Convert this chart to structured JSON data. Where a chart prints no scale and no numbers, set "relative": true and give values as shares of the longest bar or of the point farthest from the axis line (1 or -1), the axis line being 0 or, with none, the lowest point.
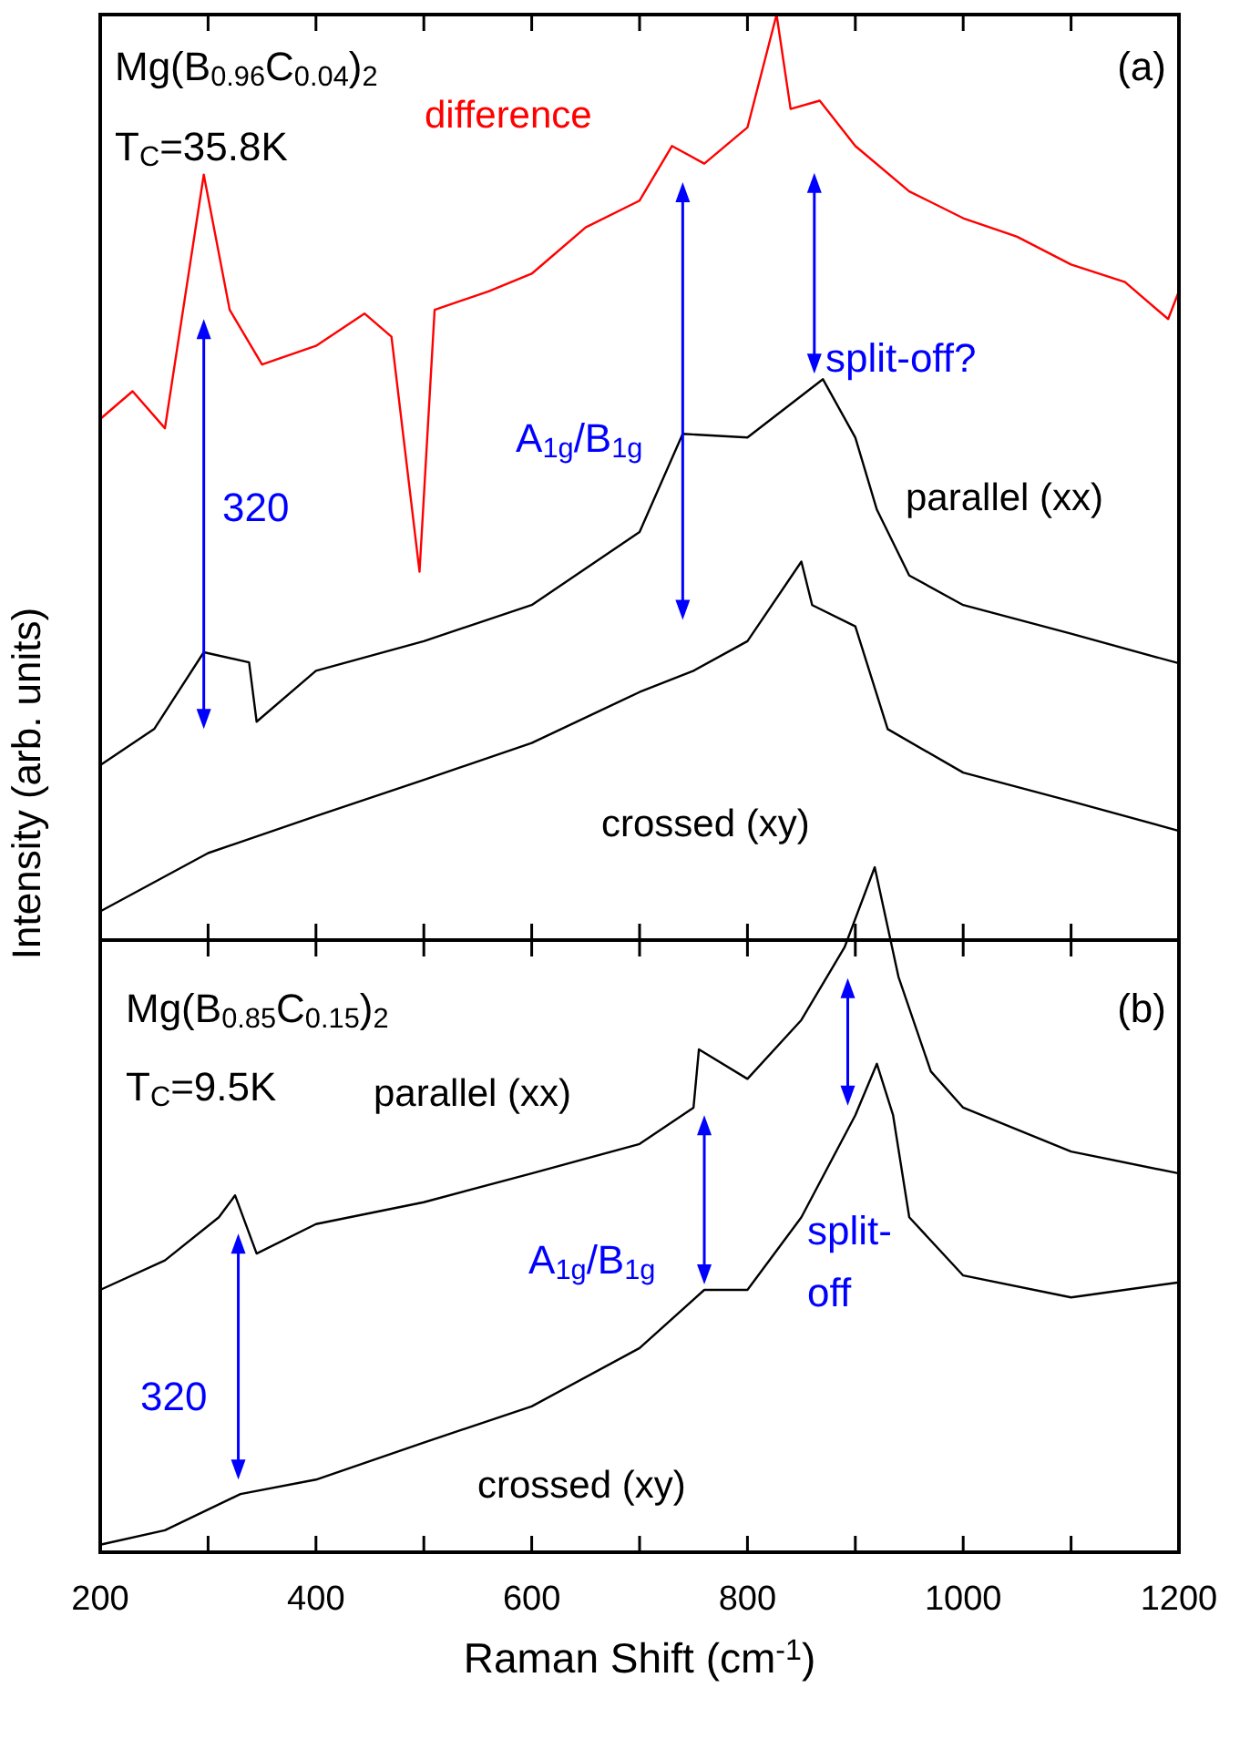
{
  "chart_data": [
    {
      "type": "line",
      "relative": true,
      "xlim": [
        200,
        1200
      ],
      "xticks": [
        200,
        {
          "value": 300,
          "label": null
        },
        400,
        {
          "value": 500,
          "label": null
        },
        600,
        {
          "value": 700,
          "label": null
        },
        800,
        {
          "value": 900,
          "label": null
        },
        1000,
        {
          "value": 1100,
          "label": null
        },
        1200
      ],
      "tick_labels": false,
      "legend": false,
      "grid": false,
      "ylabel": "Intensity (arb. units)",
      "annotations": [
        "Mg(B$_{0.96}$C$_{0.04}$)$_{2}$",
        "T$_{C}$=35.8K",
        "(a)",
        "320",
        "A$_{1g}$/B$_{1g}$",
        "split-off?"
      ],
      "series": [
        {
          "name": "difference",
          "color": "#ff0000",
          "x": [
            200,
            230,
            260,
            296,
            320,
            350,
            400,
            445,
            470,
            496,
            510,
            560,
            600,
            650,
            700,
            730,
            760,
            800,
            827,
            840,
            867,
            900,
            950,
            1000,
            1050,
            1100,
            1150,
            1190,
            1200
          ],
          "values": [
            0.563,
            0.593,
            0.553,
            0.827,
            0.681,
            0.622,
            0.642,
            0.677,
            0.652,
            0.398,
            0.681,
            0.701,
            0.72,
            0.77,
            0.799,
            0.858,
            0.839,
            0.878,
            1.0,
            0.898,
            0.907,
            0.858,
            0.809,
            0.78,
            0.76,
            0.73,
            0.711,
            0.671,
            0.701
          ]
        },
        {
          "name": "parallel (xx)",
          "color": "#000000",
          "x": [
            200,
            250,
            296,
            338,
            345,
            400,
            500,
            600,
            700,
            740,
            800,
            870,
            900,
            920,
            950,
            1000,
            1100,
            1200
          ],
          "values": [
            0.189,
            0.228,
            0.311,
            0.3,
            0.236,
            0.291,
            0.323,
            0.362,
            0.441,
            0.547,
            0.543,
            0.606,
            0.543,
            0.465,
            0.394,
            0.362,
            0.331,
            0.299
          ]
        },
        {
          "name": "crossed (xy)",
          "color": "#000000",
          "x": [
            200,
            300,
            400,
            500,
            600,
            700,
            750,
            800,
            850,
            860,
            900,
            930,
            1000,
            1100,
            1200
          ],
          "values": [
            0.031,
            0.094,
            0.134,
            0.173,
            0.213,
            0.268,
            0.291,
            0.323,
            0.409,
            0.362,
            0.339,
            0.228,
            0.181,
            0.15,
            0.118
          ]
        }
      ]
    },
    {
      "type": "line",
      "relative": true,
      "xlim": [
        200,
        1200
      ],
      "xticks": [
        200,
        {
          "value": 300,
          "label": null
        },
        400,
        {
          "value": 500,
          "label": null
        },
        600,
        {
          "value": 700,
          "label": null
        },
        800,
        {
          "value": 900,
          "label": null
        },
        1000,
        {
          "value": 1100,
          "label": null
        },
        1200
      ],
      "tick_labels": "x",
      "legend": false,
      "grid": false,
      "xlabel": "Raman Shift (cm$^{-1}$)",
      "annotations": [
        "Mg(B$_{0.85}$C$_{0.15}$)$_{2}$",
        "T$_{C}$=9.5K",
        "(b)",
        "320",
        "A$_{1g}$/B$_{1g}$",
        "split-off"
      ],
      "series": [
        {
          "name": "parallel (xx)",
          "color": "#000000",
          "x": [
            200,
            260,
            310,
            325,
            345,
            400,
            500,
            600,
            700,
            750,
            755,
            800,
            850,
            890,
            918,
            940,
            970,
            1000,
            1100,
            1200
          ],
          "values": [
            0.383,
            0.426,
            0.489,
            0.521,
            0.436,
            0.479,
            0.511,
            0.553,
            0.596,
            0.649,
            0.734,
            0.691,
            0.777,
            0.883,
            1.0,
            0.84,
            0.702,
            0.649,
            0.585,
            0.553
          ]
        },
        {
          "name": "crossed (xy)",
          "color": "#000000",
          "x": [
            200,
            260,
            330,
            400,
            500,
            600,
            700,
            760,
            800,
            850,
            900,
            920,
            935,
            950,
            1000,
            1100,
            1200
          ],
          "values": [
            0.011,
            0.032,
            0.085,
            0.106,
            0.16,
            0.213,
            0.298,
            0.383,
            0.383,
            0.489,
            0.638,
            0.713,
            0.638,
            0.489,
            0.404,
            0.372,
            0.394
          ]
        }
      ]
    }
  ]
}
